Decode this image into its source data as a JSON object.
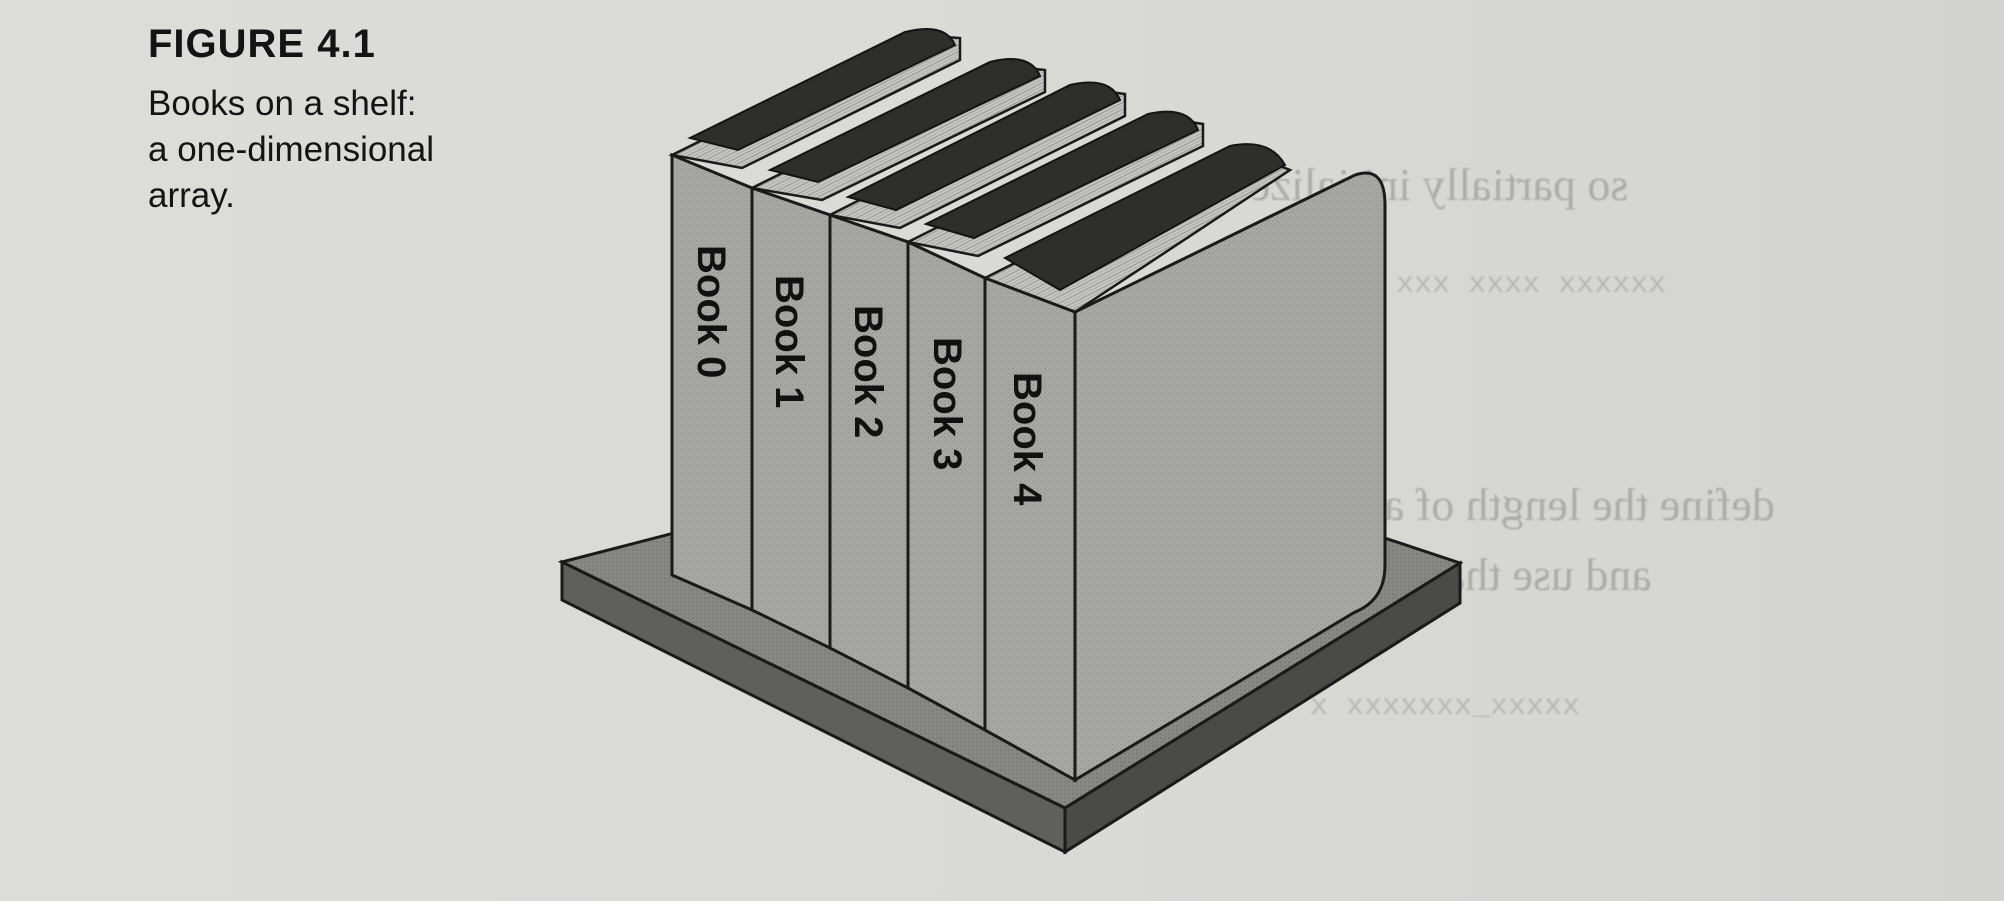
{
  "figure": {
    "number_label": "FIGURE 4.1",
    "caption_lines": [
      "Books on a shelf:",
      "a one-dimensional",
      "array."
    ]
  },
  "illustration": {
    "subject": "shelf-with-books",
    "books": [
      {
        "label": "Book 0"
      },
      {
        "label": "Book 1"
      },
      {
        "label": "Book 2"
      },
      {
        "label": "Book 3"
      },
      {
        "label": "Book 4"
      }
    ]
  },
  "bleed_through_text": [
    "so partially initialize ele",
    "define the length of an array",
    "and use that constant in"
  ],
  "colors": {
    "paper": "#d9d9d6",
    "ink": "#141414",
    "spine_fill": "#a6a6a4",
    "shelf_top": "#8c8c8a",
    "shelf_side": "#5a5a58",
    "bookend_fill": "#a9a9a7",
    "pages": "#c2c2c0"
  }
}
